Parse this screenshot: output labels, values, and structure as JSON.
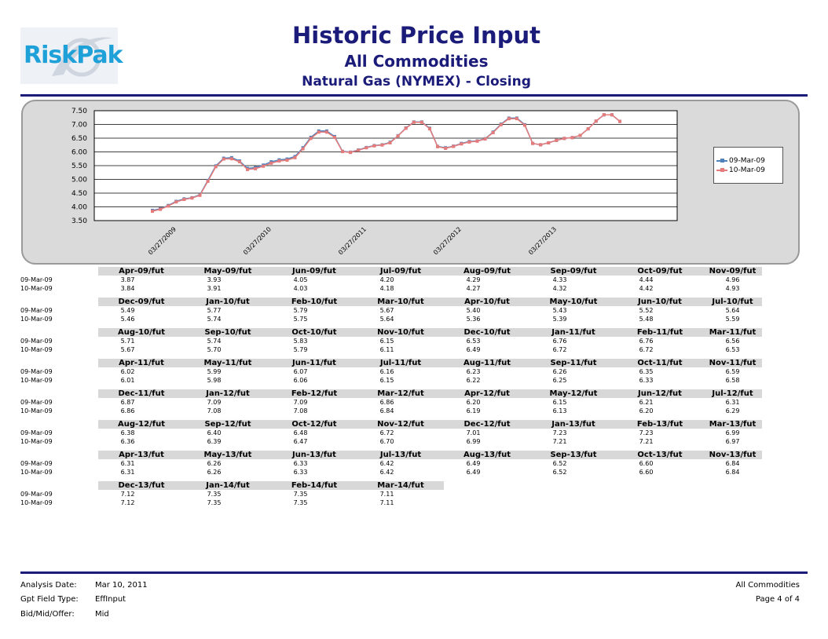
{
  "header": {
    "logo_text": "RiskPak",
    "title": "Historic Price Input",
    "subtitle": "All Commodities",
    "subtitle2": "Natural Gas (NYMEX) - Closing"
  },
  "colors": {
    "series1": "#4f81bd",
    "series2": "#e57b7b",
    "title": "#1b1b7a",
    "logo": "#1ea0d8"
  },
  "chart_data": {
    "type": "line",
    "title": "",
    "ylim": [
      3.5,
      7.5
    ],
    "yticks": [
      "3.50",
      "4.00",
      "4.50",
      "5.00",
      "5.50",
      "6.00",
      "6.50",
      "7.00",
      "7.50"
    ],
    "xtick_labels": [
      "03/27/2009",
      "03/27/2010",
      "03/27/2011",
      "03/27/2012",
      "03/27/2013"
    ],
    "grid": true,
    "legend_position": "right",
    "x": [
      "Apr-09",
      "May-09",
      "Jun-09",
      "Jul-09",
      "Aug-09",
      "Sep-09",
      "Oct-09",
      "Nov-09",
      "Dec-09",
      "Jan-10",
      "Feb-10",
      "Mar-10",
      "Apr-10",
      "May-10",
      "Jun-10",
      "Jul-10",
      "Aug-10",
      "Sep-10",
      "Oct-10",
      "Nov-10",
      "Dec-10",
      "Jan-11",
      "Feb-11",
      "Mar-11",
      "Apr-11",
      "May-11",
      "Jun-11",
      "Jul-11",
      "Aug-11",
      "Sep-11",
      "Oct-11",
      "Nov-11",
      "Dec-11",
      "Jan-12",
      "Feb-12",
      "Mar-12",
      "Apr-12",
      "May-12",
      "Jun-12",
      "Jul-12",
      "Aug-12",
      "Sep-12",
      "Oct-12",
      "Nov-12",
      "Dec-12",
      "Jan-13",
      "Feb-13",
      "Mar-13",
      "Apr-13",
      "May-13",
      "Jun-13",
      "Jul-13",
      "Aug-13",
      "Sep-13",
      "Oct-13",
      "Nov-13",
      "Dec-13",
      "Jan-14",
      "Feb-14",
      "Mar-14"
    ],
    "series": [
      {
        "name": "09-Mar-09",
        "values": [
          3.87,
          3.93,
          4.05,
          4.2,
          4.29,
          4.33,
          4.44,
          4.96,
          5.49,
          5.77,
          5.79,
          5.67,
          5.4,
          5.43,
          5.52,
          5.64,
          5.71,
          5.74,
          5.83,
          6.15,
          6.53,
          6.76,
          6.76,
          6.56,
          6.02,
          5.99,
          6.07,
          6.16,
          6.23,
          6.26,
          6.35,
          6.59,
          6.87,
          7.09,
          7.09,
          6.86,
          6.2,
          6.15,
          6.21,
          6.31,
          6.38,
          6.4,
          6.48,
          6.72,
          7.01,
          7.23,
          7.23,
          6.99,
          6.31,
          6.26,
          6.33,
          6.42,
          6.49,
          6.52,
          6.6,
          6.84,
          7.12,
          7.35,
          7.35,
          7.11
        ]
      },
      {
        "name": "10-Mar-09",
        "values": [
          3.84,
          3.91,
          4.03,
          4.18,
          4.27,
          4.32,
          4.42,
          4.93,
          5.46,
          5.74,
          5.75,
          5.64,
          5.36,
          5.39,
          5.48,
          5.59,
          5.67,
          5.7,
          5.79,
          6.11,
          6.49,
          6.72,
          6.72,
          6.53,
          6.01,
          5.98,
          6.06,
          6.15,
          6.22,
          6.25,
          6.33,
          6.58,
          6.86,
          7.08,
          7.08,
          6.84,
          6.19,
          6.13,
          6.2,
          6.29,
          6.36,
          6.39,
          6.47,
          6.7,
          6.99,
          7.21,
          7.21,
          6.97,
          6.31,
          6.26,
          6.33,
          6.42,
          6.49,
          6.52,
          6.6,
          6.84,
          7.12,
          7.35,
          7.35,
          7.11
        ]
      }
    ]
  },
  "table": {
    "row_labels": [
      "09-Mar-09",
      "10-Mar-09"
    ],
    "groups": [
      {
        "headers": [
          "Apr-09/fut",
          "May-09/fut",
          "Jun-09/fut",
          "Jul-09/fut",
          "Aug-09/fut",
          "Sep-09/fut",
          "Oct-09/fut",
          "Nov-09/fut"
        ],
        "r1": [
          "3.87",
          "3.93",
          "4.05",
          "4.20",
          "4.29",
          "4.33",
          "4.44",
          "4.96"
        ],
        "r2": [
          "3.84",
          "3.91",
          "4.03",
          "4.18",
          "4.27",
          "4.32",
          "4.42",
          "4.93"
        ]
      },
      {
        "headers": [
          "Dec-09/fut",
          "Jan-10/fut",
          "Feb-10/fut",
          "Mar-10/fut",
          "Apr-10/fut",
          "May-10/fut",
          "Jun-10/fut",
          "Jul-10/fut"
        ],
        "r1": [
          "5.49",
          "5.77",
          "5.79",
          "5.67",
          "5.40",
          "5.43",
          "5.52",
          "5.64"
        ],
        "r2": [
          "5.46",
          "5.74",
          "5.75",
          "5.64",
          "5.36",
          "5.39",
          "5.48",
          "5.59"
        ]
      },
      {
        "headers": [
          "Aug-10/fut",
          "Sep-10/fut",
          "Oct-10/fut",
          "Nov-10/fut",
          "Dec-10/fut",
          "Jan-11/fut",
          "Feb-11/fut",
          "Mar-11/fut"
        ],
        "r1": [
          "5.71",
          "5.74",
          "5.83",
          "6.15",
          "6.53",
          "6.76",
          "6.76",
          "6.56"
        ],
        "r2": [
          "5.67",
          "5.70",
          "5.79",
          "6.11",
          "6.49",
          "6.72",
          "6.72",
          "6.53"
        ]
      },
      {
        "headers": [
          "Apr-11/fut",
          "May-11/fut",
          "Jun-11/fut",
          "Jul-11/fut",
          "Aug-11/fut",
          "Sep-11/fut",
          "Oct-11/fut",
          "Nov-11/fut"
        ],
        "r1": [
          "6.02",
          "5.99",
          "6.07",
          "6.16",
          "6.23",
          "6.26",
          "6.35",
          "6.59"
        ],
        "r2": [
          "6.01",
          "5.98",
          "6.06",
          "6.15",
          "6.22",
          "6.25",
          "6.33",
          "6.58"
        ]
      },
      {
        "headers": [
          "Dec-11/fut",
          "Jan-12/fut",
          "Feb-12/fut",
          "Mar-12/fut",
          "Apr-12/fut",
          "May-12/fut",
          "Jun-12/fut",
          "Jul-12/fut"
        ],
        "r1": [
          "6.87",
          "7.09",
          "7.09",
          "6.86",
          "6.20",
          "6.15",
          "6.21",
          "6.31"
        ],
        "r2": [
          "6.86",
          "7.08",
          "7.08",
          "6.84",
          "6.19",
          "6.13",
          "6.20",
          "6.29"
        ]
      },
      {
        "headers": [
          "Aug-12/fut",
          "Sep-12/fut",
          "Oct-12/fut",
          "Nov-12/fut",
          "Dec-12/fut",
          "Jan-13/fut",
          "Feb-13/fut",
          "Mar-13/fut"
        ],
        "r1": [
          "6.38",
          "6.40",
          "6.48",
          "6.72",
          "7.01",
          "7.23",
          "7.23",
          "6.99"
        ],
        "r2": [
          "6.36",
          "6.39",
          "6.47",
          "6.70",
          "6.99",
          "7.21",
          "7.21",
          "6.97"
        ]
      },
      {
        "headers": [
          "Apr-13/fut",
          "May-13/fut",
          "Jun-13/fut",
          "Jul-13/fut",
          "Aug-13/fut",
          "Sep-13/fut",
          "Oct-13/fut",
          "Nov-13/fut"
        ],
        "r1": [
          "6.31",
          "6.26",
          "6.33",
          "6.42",
          "6.49",
          "6.52",
          "6.60",
          "6.84"
        ],
        "r2": [
          "6.31",
          "6.26",
          "6.33",
          "6.42",
          "6.49",
          "6.52",
          "6.60",
          "6.84"
        ]
      },
      {
        "headers": [
          "Dec-13/fut",
          "Jan-14/fut",
          "Feb-14/fut",
          "Mar-14/fut"
        ],
        "r1": [
          "7.12",
          "7.35",
          "7.35",
          "7.11"
        ],
        "r2": [
          "7.12",
          "7.35",
          "7.35",
          "7.11"
        ]
      }
    ]
  },
  "footer": {
    "analysis_date_label": "Analysis Date:",
    "analysis_date_value": "Mar 10, 2011",
    "field_type_label": "Gpt Field Type:",
    "field_type_value": "EffInput",
    "bid_label": "Bid/Mid/Offer:",
    "bid_value": "Mid",
    "right_title": "All Commodities",
    "page": "Page 4 of 4"
  }
}
